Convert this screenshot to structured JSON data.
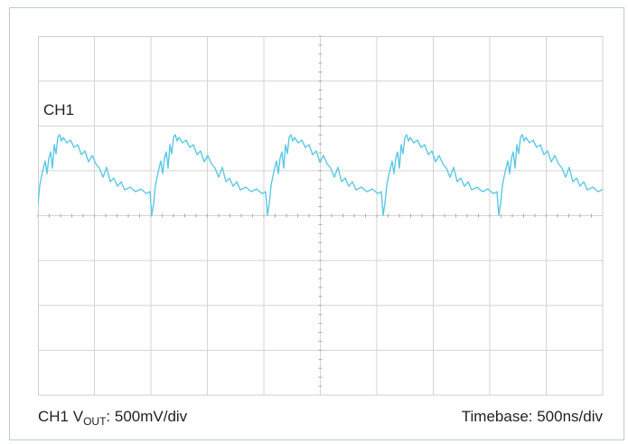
{
  "channel_label": "CH1",
  "footer": {
    "channel": "CH1 V",
    "subscript": "OUT",
    "scale": ": 500mV/div",
    "timebase": "Timebase: 500ns/div"
  }
}
